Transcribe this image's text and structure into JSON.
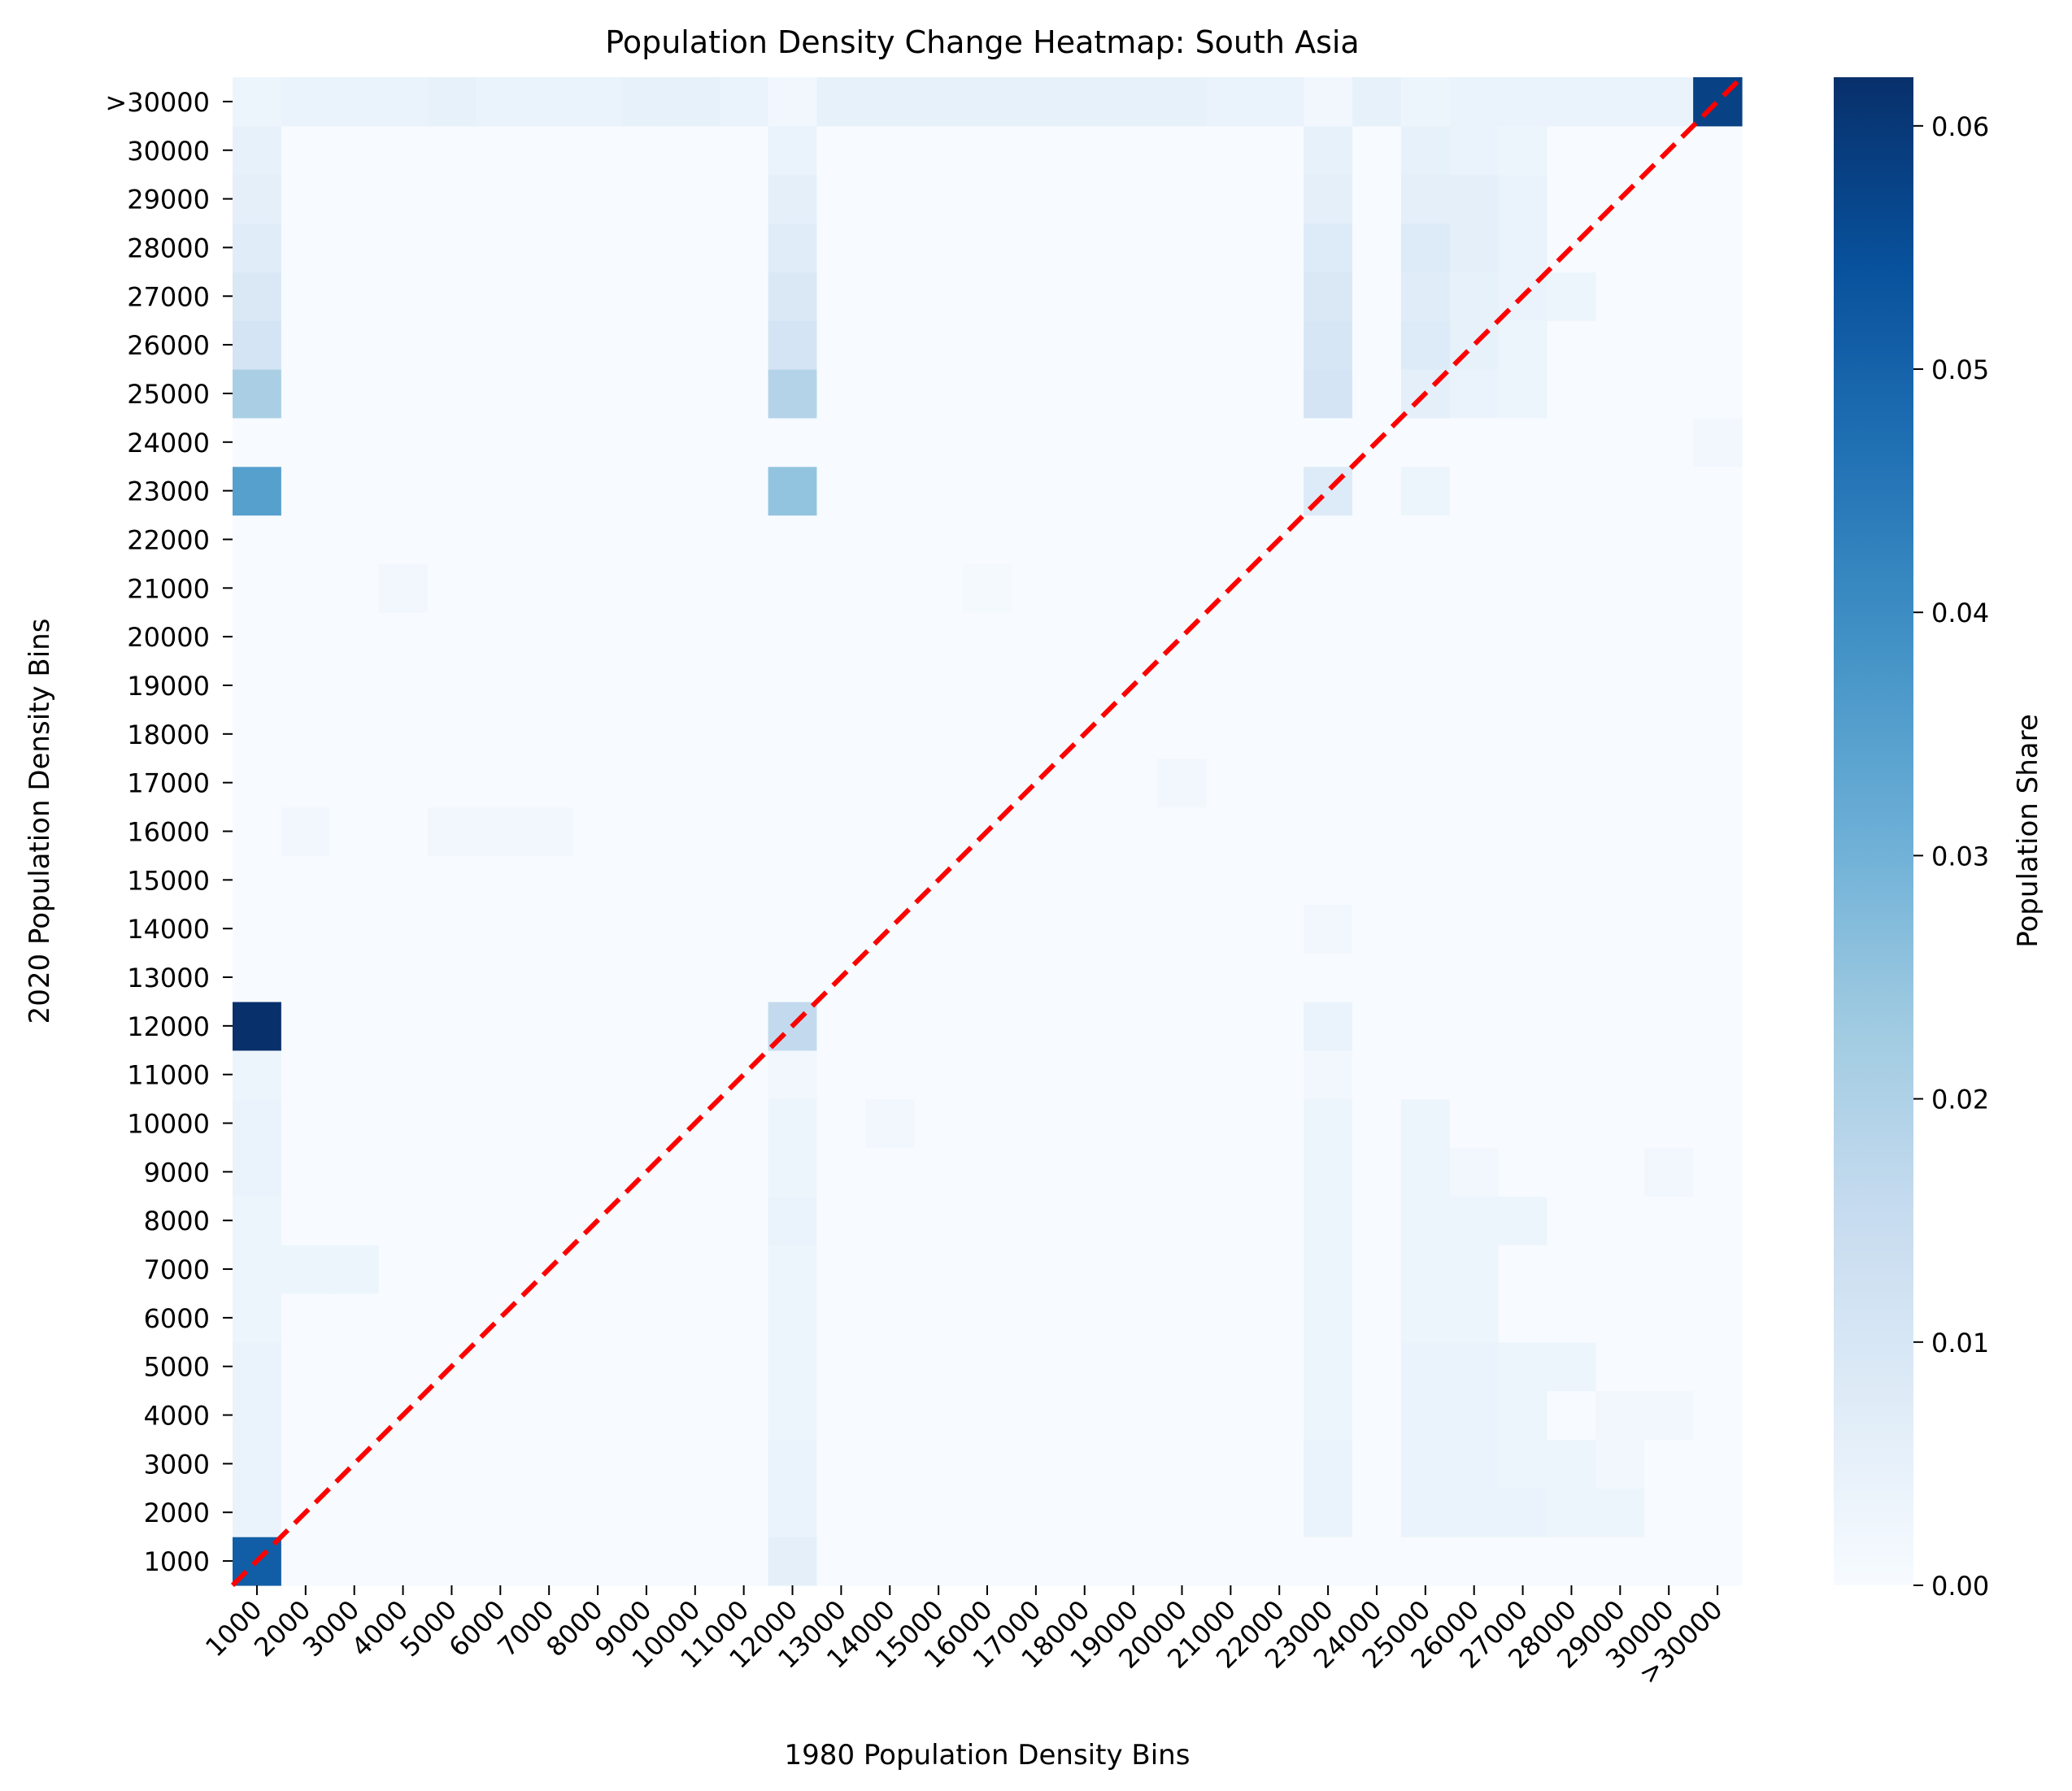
{
  "chart_data": {
    "type": "heatmap",
    "title": "Population Density Change Heatmap: South Asia",
    "xlabel": "1980 Population Density Bins",
    "ylabel": "2020 Population Density Bins",
    "colorbar_label": "Population Share",
    "colormap": "Blues",
    "colormap_stops": [
      "#f7fbff",
      "#deebf7",
      "#c6dbef",
      "#9ecae1",
      "#6baed6",
      "#4292c6",
      "#2171b5",
      "#08519c",
      "#08306b"
    ],
    "diagonal_line_color": "#ff0000",
    "vmin": 0.0,
    "vmax": 0.062,
    "colorbar_ticks": [
      "0.00",
      "0.01",
      "0.02",
      "0.03",
      "0.04",
      "0.05",
      "0.06"
    ],
    "x_categories": [
      "1000",
      "2000",
      "3000",
      "4000",
      "5000",
      "6000",
      "7000",
      "8000",
      "9000",
      "10000",
      "11000",
      "12000",
      "13000",
      "14000",
      "15000",
      "16000",
      "17000",
      "18000",
      "19000",
      "20000",
      "21000",
      "22000",
      "23000",
      "24000",
      "25000",
      "26000",
      "27000",
      "28000",
      "29000",
      "30000",
      ">30000"
    ],
    "y_categories": [
      "1000",
      "2000",
      "3000",
      "4000",
      "5000",
      "6000",
      "7000",
      "8000",
      "9000",
      "10000",
      "11000",
      "12000",
      "13000",
      "14000",
      "15000",
      "16000",
      "17000",
      "18000",
      "19000",
      "20000",
      "21000",
      "22000",
      "23000",
      "24000",
      "25000",
      "26000",
      "27000",
      "28000",
      "29000",
      "30000",
      ">30000"
    ],
    "cells": [
      {
        "x": "1000",
        "y": "1000",
        "v": 0.051
      },
      {
        "x": "12000",
        "y": "1000",
        "v": 0.006
      },
      {
        "x": "1000",
        "y": "12000",
        "v": 0.062
      },
      {
        "x": "12000",
        "y": "12000",
        "v": 0.016
      },
      {
        "x": "23000",
        "y": "12000",
        "v": 0.004
      },
      {
        "x": "1000",
        "y": "23000",
        "v": 0.035
      },
      {
        "x": "12000",
        "y": "23000",
        "v": 0.025
      },
      {
        "x": "23000",
        "y": "23000",
        "v": 0.008
      },
      {
        "x": "25000",
        "y": "23000",
        "v": 0.003
      },
      {
        "x": "1000",
        "y": "25000",
        "v": 0.021
      },
      {
        "x": "12000",
        "y": "25000",
        "v": 0.019
      },
      {
        "x": "23000",
        "y": "25000",
        "v": 0.011
      },
      {
        "x": "25000",
        "y": "25000",
        "v": 0.006
      },
      {
        "x": "26000",
        "y": "25000",
        "v": 0.004
      },
      {
        "x": "27000",
        "y": "25000",
        "v": 0.003
      },
      {
        "x": "1000",
        "y": "26000",
        "v": 0.011
      },
      {
        "x": "12000",
        "y": "26000",
        "v": 0.011
      },
      {
        "x": "23000",
        "y": "26000",
        "v": 0.01
      },
      {
        "x": "25000",
        "y": "26000",
        "v": 0.008
      },
      {
        "x": "26000",
        "y": "26000",
        "v": 0.005
      },
      {
        "x": "27000",
        "y": "26000",
        "v": 0.003
      },
      {
        "x": "1000",
        "y": "27000",
        "v": 0.009
      },
      {
        "x": "12000",
        "y": "27000",
        "v": 0.009
      },
      {
        "x": "23000",
        "y": "27000",
        "v": 0.009
      },
      {
        "x": "25000",
        "y": "27000",
        "v": 0.007
      },
      {
        "x": "26000",
        "y": "27000",
        "v": 0.005
      },
      {
        "x": "27000",
        "y": "27000",
        "v": 0.004
      },
      {
        "x": "28000",
        "y": "27000",
        "v": 0.003
      },
      {
        "x": "1000",
        "y": "28000",
        "v": 0.007
      },
      {
        "x": "12000",
        "y": "28000",
        "v": 0.007
      },
      {
        "x": "23000",
        "y": "28000",
        "v": 0.008
      },
      {
        "x": "25000",
        "y": "28000",
        "v": 0.008
      },
      {
        "x": "26000",
        "y": "28000",
        "v": 0.006
      },
      {
        "x": "27000",
        "y": "28000",
        "v": 0.004
      },
      {
        "x": "1000",
        "y": "29000",
        "v": 0.006
      },
      {
        "x": "12000",
        "y": "29000",
        "v": 0.006
      },
      {
        "x": "23000",
        "y": "29000",
        "v": 0.006
      },
      {
        "x": "25000",
        "y": "29000",
        "v": 0.006
      },
      {
        "x": "26000",
        "y": "29000",
        "v": 0.006
      },
      {
        "x": "27000",
        "y": "29000",
        "v": 0.004
      },
      {
        "x": "1000",
        "y": "30000",
        "v": 0.005
      },
      {
        "x": "12000",
        "y": "30000",
        "v": 0.004
      },
      {
        "x": "23000",
        "y": "30000",
        "v": 0.005
      },
      {
        "x": "25000",
        "y": "30000",
        "v": 0.005
      },
      {
        "x": "26000",
        "y": "30000",
        "v": 0.004
      },
      {
        "x": "27000",
        "y": "30000",
        "v": 0.003
      },
      {
        "x": "1000",
        "y": ">30000",
        "v": 0.003
      },
      {
        "x": "2000",
        "y": ">30000",
        "v": 0.004
      },
      {
        "x": "3000",
        "y": ">30000",
        "v": 0.004
      },
      {
        "x": "4000",
        "y": ">30000",
        "v": 0.004
      },
      {
        "x": "5000",
        "y": ">30000",
        "v": 0.005
      },
      {
        "x": "6000",
        "y": ">30000",
        "v": 0.004
      },
      {
        "x": "7000",
        "y": ">30000",
        "v": 0.004
      },
      {
        "x": "8000",
        "y": ">30000",
        "v": 0.004
      },
      {
        "x": "9000",
        "y": ">30000",
        "v": 0.005
      },
      {
        "x": "10000",
        "y": ">30000",
        "v": 0.005
      },
      {
        "x": "11000",
        "y": ">30000",
        "v": 0.004
      },
      {
        "x": "12000",
        "y": ">30000",
        "v": 0.002
      },
      {
        "x": "13000",
        "y": ">30000",
        "v": 0.005
      },
      {
        "x": "14000",
        "y": ">30000",
        "v": 0.005
      },
      {
        "x": "15000",
        "y": ">30000",
        "v": 0.005
      },
      {
        "x": "16000",
        "y": ">30000",
        "v": 0.005
      },
      {
        "x": "17000",
        "y": ">30000",
        "v": 0.005
      },
      {
        "x": "18000",
        "y": ">30000",
        "v": 0.005
      },
      {
        "x": "19000",
        "y": ">30000",
        "v": 0.005
      },
      {
        "x": "20000",
        "y": ">30000",
        "v": 0.005
      },
      {
        "x": "21000",
        "y": ">30000",
        "v": 0.004
      },
      {
        "x": "22000",
        "y": ">30000",
        "v": 0.004
      },
      {
        "x": "23000",
        "y": ">30000",
        "v": 0.002
      },
      {
        "x": "24000",
        "y": ">30000",
        "v": 0.005
      },
      {
        "x": "25000",
        "y": ">30000",
        "v": 0.003
      },
      {
        "x": "26000",
        "y": ">30000",
        "v": 0.004
      },
      {
        "x": "27000",
        "y": ">30000",
        "v": 0.004
      },
      {
        "x": "28000",
        "y": ">30000",
        "v": 0.004
      },
      {
        "x": "29000",
        "y": ">30000",
        "v": 0.004
      },
      {
        "x": "30000",
        "y": ">30000",
        "v": 0.004
      },
      {
        "x": ">30000",
        "y": ">30000",
        "v": 0.058
      },
      {
        "x": "1000",
        "y": "2000",
        "v": 0.004
      },
      {
        "x": "1000",
        "y": "3000",
        "v": 0.004
      },
      {
        "x": "1000",
        "y": "4000",
        "v": 0.004
      },
      {
        "x": "1000",
        "y": "5000",
        "v": 0.004
      },
      {
        "x": "1000",
        "y": "6000",
        "v": 0.003
      },
      {
        "x": "1000",
        "y": "7000",
        "v": 0.003
      },
      {
        "x": "1000",
        "y": "8000",
        "v": 0.003
      },
      {
        "x": "1000",
        "y": "9000",
        "v": 0.004
      },
      {
        "x": "1000",
        "y": "10000",
        "v": 0.004
      },
      {
        "x": "1000",
        "y": "11000",
        "v": 0.003
      },
      {
        "x": "12000",
        "y": "2000",
        "v": 0.004
      },
      {
        "x": "12000",
        "y": "3000",
        "v": 0.004
      },
      {
        "x": "12000",
        "y": "4000",
        "v": 0.003
      },
      {
        "x": "12000",
        "y": "5000",
        "v": 0.003
      },
      {
        "x": "12000",
        "y": "6000",
        "v": 0.003
      },
      {
        "x": "12000",
        "y": "7000",
        "v": 0.003
      },
      {
        "x": "12000",
        "y": "8000",
        "v": 0.004
      },
      {
        "x": "12000",
        "y": "9000",
        "v": 0.003
      },
      {
        "x": "12000",
        "y": "10000",
        "v": 0.003
      },
      {
        "x": "12000",
        "y": "11000",
        "v": 0.002
      },
      {
        "x": "23000",
        "y": "2000",
        "v": 0.004
      },
      {
        "x": "23000",
        "y": "3000",
        "v": 0.004
      },
      {
        "x": "23000",
        "y": "4000",
        "v": 0.003
      },
      {
        "x": "23000",
        "y": "5000",
        "v": 0.003
      },
      {
        "x": "23000",
        "y": "6000",
        "v": 0.003
      },
      {
        "x": "23000",
        "y": "7000",
        "v": 0.003
      },
      {
        "x": "23000",
        "y": "8000",
        "v": 0.003
      },
      {
        "x": "23000",
        "y": "9000",
        "v": 0.003
      },
      {
        "x": "23000",
        "y": "10000",
        "v": 0.003
      },
      {
        "x": "23000",
        "y": "11000",
        "v": 0.002
      },
      {
        "x": "23000",
        "y": "14000",
        "v": 0.002
      },
      {
        "x": "25000",
        "y": "2000",
        "v": 0.004
      },
      {
        "x": "25000",
        "y": "3000",
        "v": 0.004
      },
      {
        "x": "25000",
        "y": "4000",
        "v": 0.004
      },
      {
        "x": "25000",
        "y": "5000",
        "v": 0.004
      },
      {
        "x": "25000",
        "y": "6000",
        "v": 0.003
      },
      {
        "x": "25000",
        "y": "7000",
        "v": 0.003
      },
      {
        "x": "25000",
        "y": "8000",
        "v": 0.003
      },
      {
        "x": "25000",
        "y": "9000",
        "v": 0.003
      },
      {
        "x": "25000",
        "y": "10000",
        "v": 0.003
      },
      {
        "x": "26000",
        "y": "2000",
        "v": 0.004
      },
      {
        "x": "26000",
        "y": "3000",
        "v": 0.004
      },
      {
        "x": "26000",
        "y": "4000",
        "v": 0.004
      },
      {
        "x": "26000",
        "y": "5000",
        "v": 0.004
      },
      {
        "x": "26000",
        "y": "6000",
        "v": 0.003
      },
      {
        "x": "26000",
        "y": "7000",
        "v": 0.003
      },
      {
        "x": "26000",
        "y": "8000",
        "v": 0.003
      },
      {
        "x": "26000",
        "y": "9000",
        "v": 0.002
      },
      {
        "x": "27000",
        "y": "2000",
        "v": 0.004
      },
      {
        "x": "27000",
        "y": "3000",
        "v": 0.003
      },
      {
        "x": "27000",
        "y": "4000",
        "v": 0.003
      },
      {
        "x": "27000",
        "y": "5000",
        "v": 0.003
      },
      {
        "x": "27000",
        "y": "8000",
        "v": 0.003
      },
      {
        "x": "28000",
        "y": "2000",
        "v": 0.003
      },
      {
        "x": "28000",
        "y": "3000",
        "v": 0.003
      },
      {
        "x": "28000",
        "y": "5000",
        "v": 0.003
      },
      {
        "x": "29000",
        "y": "2000",
        "v": 0.003
      },
      {
        "x": "29000",
        "y": "3000",
        "v": 0.002
      },
      {
        "x": "29000",
        "y": "4000",
        "v": 0.002
      },
      {
        "x": "30000",
        "y": "4000",
        "v": 0.002
      },
      {
        "x": "30000",
        "y": "9000",
        "v": 0.002
      },
      {
        "x": "2000",
        "y": "7000",
        "v": 0.003
      },
      {
        "x": "3000",
        "y": "7000",
        "v": 0.003
      },
      {
        "x": "2000",
        "y": "16000",
        "v": 0.002
      },
      {
        "x": "4000",
        "y": "21000",
        "v": 0.002
      },
      {
        "x": "5000",
        "y": "16000",
        "v": 0.002
      },
      {
        "x": "6000",
        "y": "16000",
        "v": 0.002
      },
      {
        "x": "7000",
        "y": "16000",
        "v": 0.002
      },
      {
        "x": "14000",
        "y": "10000",
        "v": 0.002
      },
      {
        "x": "16000",
        "y": "21000",
        "v": 0.001
      },
      {
        "x": "20000",
        "y": "17000",
        "v": 0.002
      },
      {
        "x": ">30000",
        "y": "24000",
        "v": 0.002
      }
    ],
    "diagonal_line": {
      "from": [
        "1000",
        "1000"
      ],
      "to": [
        ">30000",
        ">30000"
      ],
      "style": "dashed"
    }
  }
}
